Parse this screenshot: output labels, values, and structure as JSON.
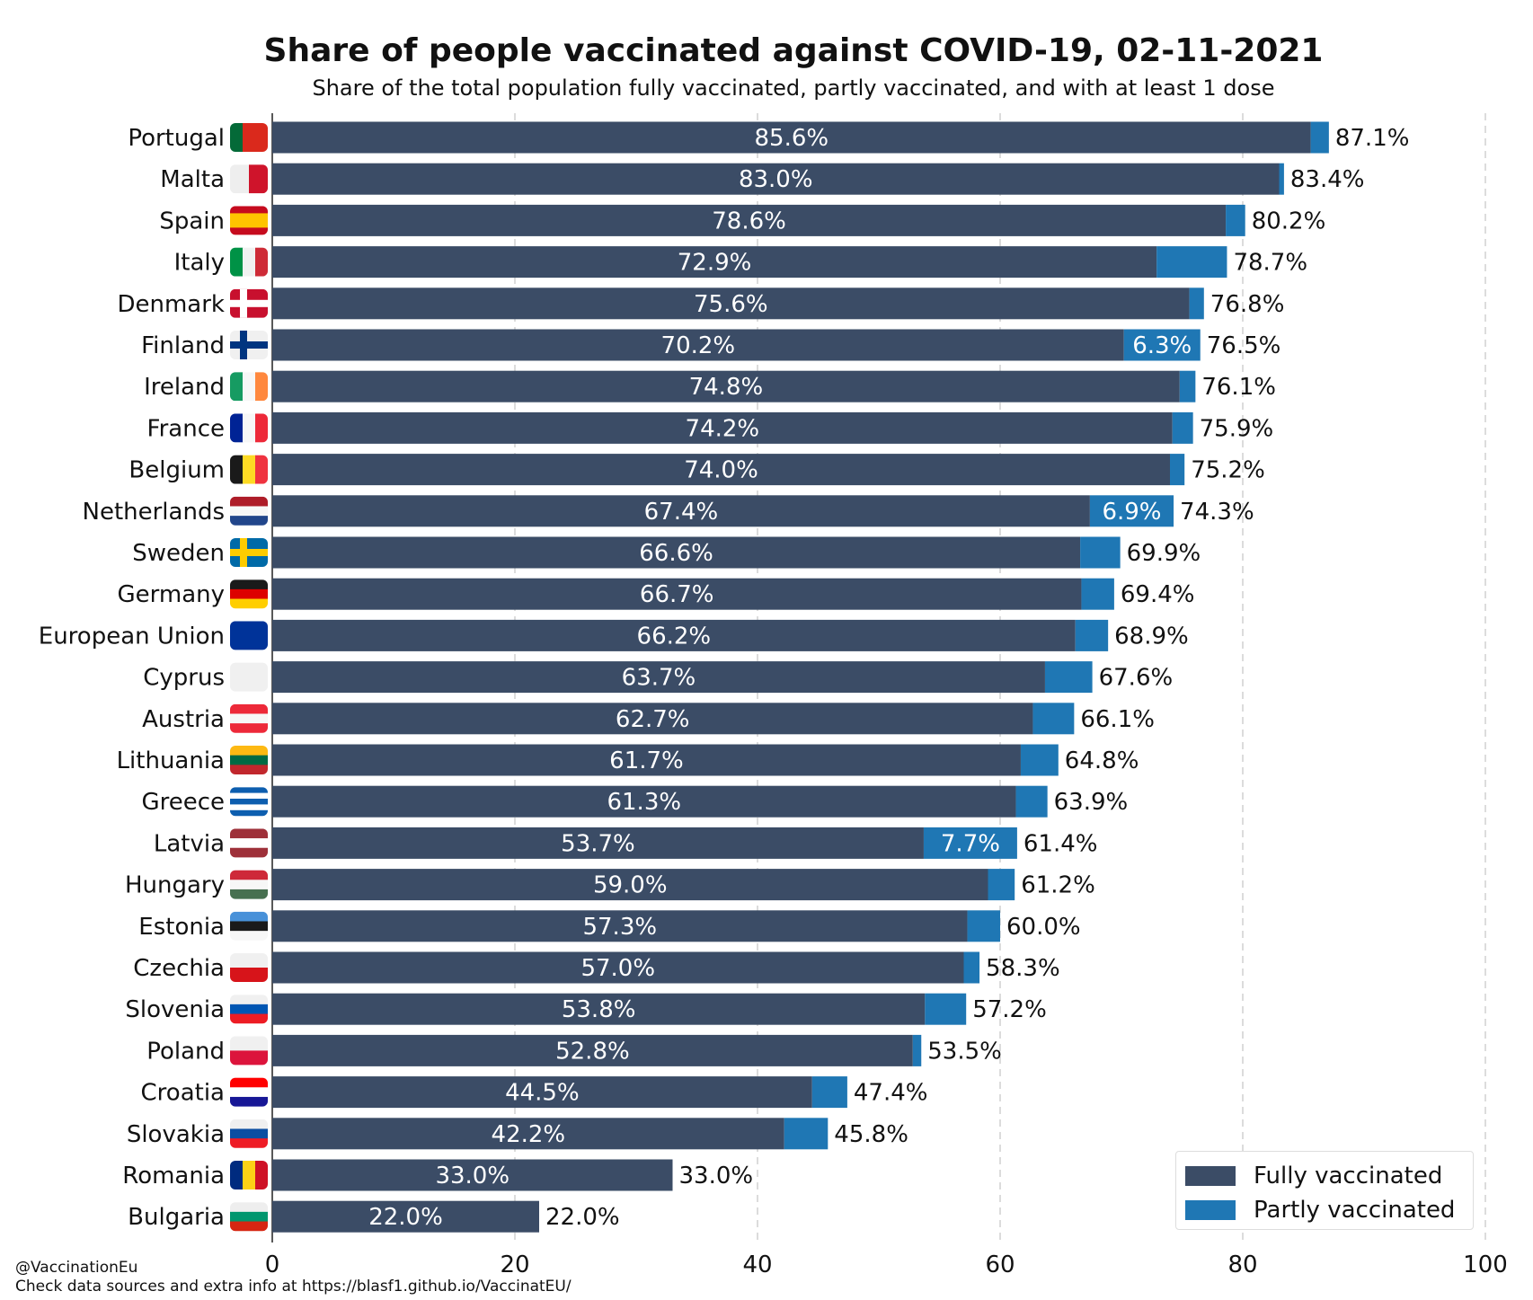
{
  "chart_data": {
    "type": "bar",
    "orientation": "horizontal",
    "stacked": true,
    "title": "Share of people vaccinated against COVID-19, 02-11-2021",
    "subtitle": "Share of the total population fully vaccinated, partly vaccinated, and with at least 1 dose",
    "xlim": [
      0,
      100
    ],
    "xticks": [
      0,
      20,
      40,
      60,
      80,
      100
    ],
    "grid": "x-dashed",
    "legend_placement": "bottom-right",
    "colors": {
      "full": "#3b4c66",
      "partly": "#1f77b4"
    },
    "categories": [
      "Portugal",
      "Malta",
      "Spain",
      "Italy",
      "Denmark",
      "Finland",
      "Ireland",
      "France",
      "Belgium",
      "Netherlands",
      "Sweden",
      "Germany",
      "European Union",
      "Cyprus",
      "Austria",
      "Lithuania",
      "Greece",
      "Latvia",
      "Hungary",
      "Estonia",
      "Czechia",
      "Slovenia",
      "Poland",
      "Croatia",
      "Slovakia",
      "Romania",
      "Bulgaria"
    ],
    "series": [
      {
        "name": "Fully vaccinated",
        "values": [
          85.6,
          83.0,
          78.6,
          72.9,
          75.6,
          70.2,
          74.8,
          74.2,
          74.0,
          67.4,
          66.6,
          66.7,
          66.2,
          63.7,
          62.7,
          61.7,
          61.3,
          53.7,
          59.0,
          57.3,
          57.0,
          53.8,
          52.8,
          44.5,
          42.2,
          33.0,
          22.0
        ]
      },
      {
        "name": "Partly vaccinated",
        "values": [
          1.5,
          0.4,
          1.6,
          5.8,
          1.2,
          6.3,
          1.3,
          1.7,
          1.2,
          6.9,
          3.3,
          2.7,
          2.7,
          3.9,
          3.4,
          3.1,
          2.6,
          7.7,
          2.2,
          2.7,
          1.3,
          3.4,
          0.7,
          2.9,
          3.6,
          0.0,
          0.0
        ]
      }
    ],
    "totals": [
      87.1,
      83.4,
      80.2,
      78.7,
      76.8,
      76.5,
      76.1,
      75.9,
      75.2,
      74.3,
      69.9,
      69.4,
      68.9,
      67.6,
      66.1,
      64.8,
      63.9,
      61.4,
      61.2,
      60.0,
      58.3,
      57.2,
      53.5,
      47.4,
      45.8,
      33.0,
      22.0
    ],
    "partly_labels_shown": [
      "Finland",
      "Netherlands",
      "Latvia"
    ],
    "flags": {
      "Portugal": {
        "dir": "v",
        "c": [
          "#046a38",
          "#da291c",
          "#da291c"
        ]
      },
      "Malta": {
        "dir": "v",
        "c": [
          "#eeeeee",
          "#cf142b"
        ]
      },
      "Spain": {
        "dir": "h",
        "c": [
          "#c60b1e",
          "#ffc400",
          "#ffc400",
          "#c60b1e"
        ]
      },
      "Italy": {
        "dir": "v",
        "c": [
          "#009246",
          "#f1f2f1",
          "#ce2b37"
        ]
      },
      "Denmark": {
        "dir": "cross",
        "c": [
          "#c8102e",
          "#ffffff"
        ]
      },
      "Finland": {
        "dir": "cross",
        "c": [
          "#f0f0f0",
          "#003580"
        ]
      },
      "Ireland": {
        "dir": "v",
        "c": [
          "#169b62",
          "#f7f7f7",
          "#ff883e"
        ]
      },
      "France": {
        "dir": "v",
        "c": [
          "#002395",
          "#f7f7f7",
          "#ed2939"
        ]
      },
      "Belgium": {
        "dir": "v",
        "c": [
          "#1a1a1a",
          "#fdda24",
          "#ef3340"
        ]
      },
      "Netherlands": {
        "dir": "h",
        "c": [
          "#ae1c28",
          "#f7f7f7",
          "#21468b"
        ]
      },
      "Sweden": {
        "dir": "cross",
        "c": [
          "#006aa7",
          "#fecc00"
        ]
      },
      "Germany": {
        "dir": "h",
        "c": [
          "#1a1a1a",
          "#dd0000",
          "#ffce00"
        ]
      },
      "European Union": {
        "dir": "h",
        "c": [
          "#003399"
        ]
      },
      "Cyprus": {
        "dir": "h",
        "c": [
          "#f0f0f0"
        ]
      },
      "Austria": {
        "dir": "h",
        "c": [
          "#ed2939",
          "#f7f7f7",
          "#ed2939"
        ]
      },
      "Lithuania": {
        "dir": "h",
        "c": [
          "#fdb913",
          "#006a44",
          "#c1272d"
        ]
      },
      "Greece": {
        "dir": "h",
        "c": [
          "#0d5eaf",
          "#ffffff",
          "#0d5eaf",
          "#ffffff",
          "#0d5eaf"
        ]
      },
      "Latvia": {
        "dir": "h",
        "c": [
          "#9e3039",
          "#ffffff",
          "#9e3039"
        ]
      },
      "Hungary": {
        "dir": "h",
        "c": [
          "#ce2939",
          "#f7f7f7",
          "#477050"
        ]
      },
      "Estonia": {
        "dir": "h",
        "c": [
          "#4891d9",
          "#1a1a1a",
          "#f7f7f7"
        ]
      },
      "Czechia": {
        "dir": "h",
        "c": [
          "#f0f0f0",
          "#d7141a"
        ]
      },
      "Slovenia": {
        "dir": "h",
        "c": [
          "#f0f0f0",
          "#0056b3",
          "#ed1c24"
        ]
      },
      "Poland": {
        "dir": "h",
        "c": [
          "#f0f0f0",
          "#dc143c"
        ]
      },
      "Croatia": {
        "dir": "h",
        "c": [
          "#ff0000",
          "#ffffff",
          "#171796"
        ]
      },
      "Slovakia": {
        "dir": "h",
        "c": [
          "#f0f0f0",
          "#0b4ea2",
          "#ee1c25"
        ]
      },
      "Romania": {
        "dir": "v",
        "c": [
          "#002b7f",
          "#fcd116",
          "#ce1126"
        ]
      },
      "Bulgaria": {
        "dir": "h",
        "c": [
          "#eeeeee",
          "#00966e",
          "#d62612"
        ]
      }
    }
  },
  "legend": {
    "full": "Fully vaccinated",
    "partly": "Partly vaccinated"
  },
  "footer": {
    "handle": "@VaccinationEu",
    "source": "Check data sources and extra info at https://blasf1.github.io/VaccinatEU/"
  }
}
